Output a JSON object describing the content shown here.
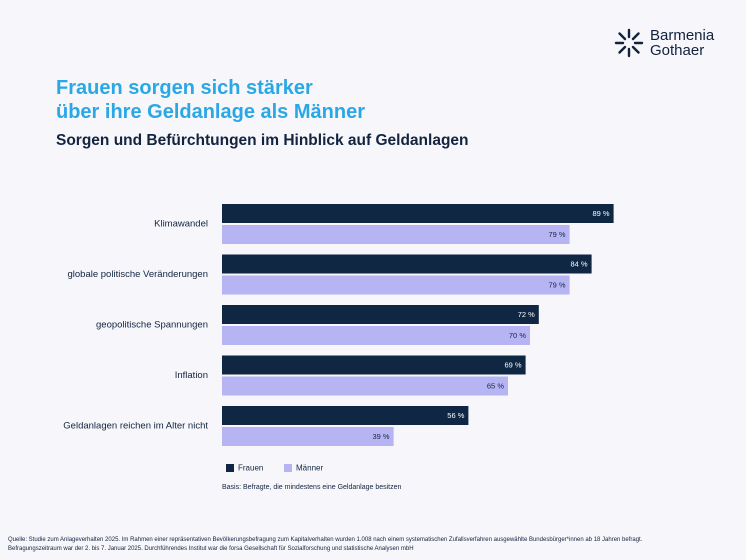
{
  "brand": {
    "line1": "Barmenia",
    "line2": "Gothaer",
    "color": "#12233f"
  },
  "headline": {
    "line1": "Frauen sorgen sich stärker",
    "line2": "über ihre Geldanlage als Männer"
  },
  "subtitle": "Sorgen und Befürchtungen im Hinblick auf Geldanlagen",
  "chart_data": {
    "type": "bar",
    "orientation": "horizontal",
    "title": "Sorgen und Befürchtungen im Hinblick auf Geldanlagen",
    "categories": [
      "Klimawandel",
      "globale politische Veränderungen",
      "geopolitische Spannungen",
      "Inflation",
      "Geldanlagen reichen im Alter nicht"
    ],
    "series": [
      {
        "name": "Frauen",
        "color": "#0f2743",
        "values": [
          89,
          84,
          72,
          69,
          56
        ],
        "labels": [
          "89 %",
          "84 %",
          "72 %",
          "69 %",
          "56 %"
        ]
      },
      {
        "name": "Männer",
        "color": "#b6b4f3",
        "values": [
          79,
          79,
          70,
          65,
          39
        ],
        "labels": [
          "79 %",
          "79 %",
          "70 %",
          "65 %",
          "39 %"
        ]
      }
    ],
    "xlim": [
      0,
      100
    ],
    "unit": "%",
    "legend_position": "bottom-left",
    "xlabel": "",
    "ylabel": ""
  },
  "basis": "Basis: Befragte, die mindestens eine Geldanlage besitzen",
  "footnote": {
    "line1": "Quelle: Studie zum Anlageverhalten 2025. Im Rahmen einer repräsentativen Bevölkerungsbefragung zum Kapitalverhalten wurden 1.008 nach einem systematischen Zufallsverfahren ausgewählte Bundesbürger*innen ab 18 Jahren befragt.",
    "line2": "Befragungszeitraum war der 2. bis 7. Januar 2025. Durchführendes Institut war die forsa Gesellschaft für Sozialforschung und statistische Analysen mbH"
  }
}
